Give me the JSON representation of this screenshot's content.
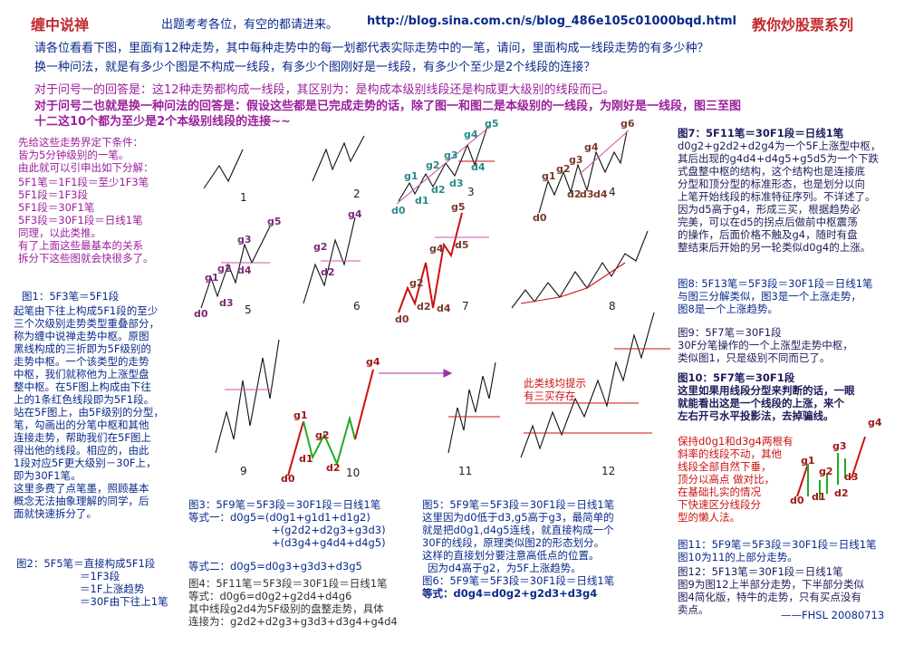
{
  "header": {
    "brand": "缠中说禅",
    "notice": "出题考考各位，有空的都请进来。",
    "url": "http://blog.sina.com.cn/s/blog_486e105c01000bqd.html",
    "series": "教你炒股票系列"
  },
  "question": {
    "line1": "请各位看看下图，里面有12种走势，其中每种走势中的每一划都代表实际走势中的一笔，请问，里面构成一线段走势的有多少种？",
    "line2": "换一种问法，就是有多少个图是不构成一线段，有多少个图刚好是一线段，有多少个至少是2个线段的连接？"
  },
  "answer": {
    "line1": "对于问号一的回答是：这12种走势都构成一线段，其区别为：是构成本级别线段还是构成更大级别的线段而已。",
    "line2": "对于问号二也就是换一种问法的回答是：假设这些都是已完成走势的话，除了图一和图二是本级别的一线段，为刚好是一线段，图三至图",
    "line3": "十二这10个都为至少是2个本级别线段的连接~~"
  },
  "left_notes": {
    "premise": [
      "先给这些走势界定下条件：",
      "皆为5分钟级别的一笔。",
      "由此就可以引申出如下分解："
    ],
    "rules": [
      "5F1笔＝1F1段＝至少1F3笔",
      "5F1段＝1F3段",
      "5F1段＝30F1笔",
      "5F3段＝30F1段＝日线1笔",
      "同理，以此类推。",
      "有了上面这些最基本的关系",
      "拆分下这些图就会快很多了。"
    ],
    "fig1_title": "图1：5F3笔＝5F1段",
    "fig1_body": [
      "起笔由下往上构成5F1段的至少",
      "三个次级别走势类型重叠部分，",
      "称为缠中说禅走势中枢。原图",
      "黑线构成的三折即为5F级别的",
      "走势中枢。一个该类型的走势",
      "中枢，我们就称他为上涨型盘",
      "整中枢。在5F图上构成由下往",
      "上的1条红色线段即为5F1段。",
      "站在5F图上，由5F级别的分型，",
      "笔，勾画出的分笔中枢和其他",
      "连接走势，帮助我们在5F图上",
      "得出他的线段。相应的，由此",
      "1段对应5F更大级别－30F上，",
      "即为30F1笔。",
      "这里多费了点笔墨，照顾基本",
      "概念无法抽象理解的同学，后",
      "面就快速拆分了。"
    ],
    "fig2": [
      "图2：5F5笔＝直接构成5F1段",
      "＝1F3段",
      "＝1F上涨趋势",
      "＝30F由下往上1笔"
    ]
  },
  "figure_numbers": [
    "1",
    "2",
    "3",
    "4",
    "5",
    "6",
    "7",
    "8",
    "9",
    "10",
    "11",
    "12"
  ],
  "point_labels": {
    "fig3": [
      "g5",
      "g4",
      "g3",
      "g2",
      "g1",
      "d4",
      "d3",
      "d2",
      "d1",
      "d0"
    ],
    "fig4": [
      "g6",
      "g4",
      "g3",
      "g2",
      "g1",
      "d4",
      "d3",
      "d2",
      "d0"
    ],
    "fig5": [
      "g5",
      "g3",
      "g2",
      "g1",
      "d4",
      "d3",
      "d0"
    ],
    "fig6": [
      "g4",
      "g2",
      "d2"
    ],
    "fig7": [
      "g5",
      "g4",
      "g2",
      "d5",
      "d4",
      "d2",
      "d0"
    ],
    "fig10": [
      "g4",
      "g1",
      "g2",
      "d1",
      "d2",
      "d0"
    ],
    "fig10_small": [
      "g4",
      "g3",
      "g2",
      "g1",
      "d3",
      "d2",
      "d1",
      "d0"
    ]
  },
  "fig11_note": [
    "此类线均提示",
    "有三买存在"
  ],
  "bottom": {
    "fig3_title": "图3：5F9笔＝5F3段＝30F1段＝日线1笔",
    "fig3_eq1": "等式一：d0g5=(d0g1+g1d1+d1g2)",
    "fig3_eq2": "+(g2d2+d2g3+g3d3)",
    "fig3_eq3": "+(d3g4+g4d4+d4g5)",
    "fig3_eq4": "等式二：d0g5=d0g3+g3d3+d3g5",
    "fig4_title": "图4：5F11笔＝5F3段＝30F1段＝日线1笔",
    "fig4_eq": "等式：d0g6=d0g2+g2d4+d4g6",
    "fig4_body1": "其中线段g2d4为5F级别的盘整走势，具体",
    "fig4_body2": "连接为：g2d2+d2g3+g3d3+d3g4+g4d4",
    "fig5_title": "图5：5F9笔＝5F3段＝30F1段＝日线1笔",
    "fig5_body": [
      "这里因为d0低于d3,g5高于g3，最简单的",
      "就是把d0g1,d4g5连线，就直接构成一个",
      "30F的线段，原理类似图2的形态划分。",
      "这样的直接划分要注意高低点的位置。",
      "因为d4高于g2，为5F上涨趋势。"
    ],
    "fig6_title": "图6：5F9笔＝5F3段＝30F1段＝日线1笔",
    "fig6_eq": "等式：d0g4=d0g2+g2d3+d3g4"
  },
  "right_notes": {
    "fig7_title": "图7：5F11笔＝30F1段＝日线1笔",
    "fig7_body": [
      "d0g2+g2d2+d2g4为一个5F上涨型中枢，",
      "其后出现的g4d4+d4g5+g5d5为一个下跌",
      "式盘整中枢的结构，这个结构也是连接底",
      "分型和顶分型的标准形态，也是划分以向",
      "上笔开始线段的标准特征序列。不详述了。",
      "因为d5高于g4，形成三买，根据趋势必",
      "完美，可以在d5的拐点后做前中枢震荡",
      "的操作，后面价格不触及g4，随时有盘",
      "整结束后开始的另一轮类似d0g4的上涨。"
    ],
    "fig8_body": [
      "图8: 5F13笔＝5F3段＝30F1段＝日线1笔",
      "与图三分解类似，图3是一个上涨走势，",
      "图8是一个上涨趋势。"
    ],
    "fig9_body": [
      "图9：5F7笔＝30F1段",
      "30F分笔操作的一个上涨型走势中枢，",
      "类似图1，只是级别不同而已了。"
    ],
    "fig10_body": [
      "图10：5F7笔＝30F1段",
      "这里如果用线段分型来判断的话，一眼",
      "就能看出这是一个线段的上涨，来个",
      "左右开弓水平投影法，去掉骗线。"
    ],
    "fig10_red": [
      "保持d0g1和d3g4两根有",
      "斜率的线段不动，其他",
      "线段全部自然下垂，",
      "顶分以高点 做对比，",
      "在基础扎实的情况",
      "下快速区分线段分",
      "型的懒人法。"
    ],
    "fig11_body": [
      "图11：5F9笔＝5F3段＝30F1段＝日线1笔",
      "图10为11的上部分走势。"
    ],
    "fig12_body": [
      "图12：5F13笔＝30F1段＝日线1笔",
      "图9为图12上半部分走势，下半部分类似",
      "图4简化版，特牛的走势，只有买点没有",
      "卖点。"
    ],
    "signature": "——FHSL 20080713"
  },
  "colors": {
    "title_red": "#c0282d",
    "text_blue": "#0a2a8a",
    "note_purple": "#9c1f9c",
    "line_red": "#cc1111",
    "line_green": "#22aa22",
    "line_pink": "#cc55aa"
  }
}
